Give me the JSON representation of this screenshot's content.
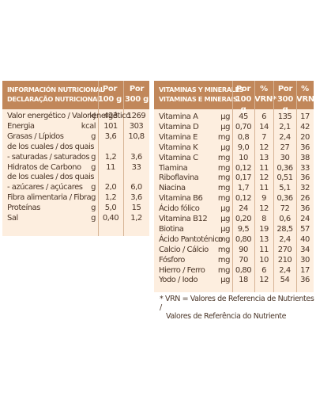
{
  "nutrition": {
    "header": {
      "title1": "INFORMACIÓN NUTRICIONAL",
      "title2": "DECLARAÇÃO NUTRICIONAL",
      "col1_l1": "Por",
      "col1_l2": "100 g",
      "col2_l1": "Por",
      "col2_l2": "300 g"
    },
    "rows": [
      {
        "label": "Valor energético / Valor energético",
        "unit": "kJ",
        "v100": "423",
        "v300": "1269"
      },
      {
        "label": "Energia",
        "unit": "kcal",
        "v100": "101",
        "v300": "303"
      },
      {
        "label": "Grasas / Lípidos",
        "unit": "g",
        "v100": "3,6",
        "v300": "10,8"
      },
      {
        "label": "de los cuales / dos quais",
        "unit": "",
        "v100": "",
        "v300": ""
      },
      {
        "label": "- saturadas / saturados",
        "unit": "g",
        "v100": "1,2",
        "v300": "3,6"
      },
      {
        "label": "Hidratos de Carbono",
        "unit": "g",
        "v100": "11",
        "v300": "33"
      },
      {
        "label": "de los cuales / dos quais",
        "unit": "",
        "v100": "",
        "v300": ""
      },
      {
        "label": "- azúcares / açúcares",
        "unit": "g",
        "v100": "2,0",
        "v300": "6,0"
      },
      {
        "label": "Fibra alimentaria / Fibra",
        "unit": "g",
        "v100": "1,2",
        "v300": "3,6"
      },
      {
        "label": "Proteínas",
        "unit": "g",
        "v100": "5,0",
        "v300": "15"
      },
      {
        "label": "Sal",
        "unit": "g",
        "v100": "0,40",
        "v300": "1,2"
      }
    ]
  },
  "vitamins": {
    "header": {
      "title1": "VITAMINAS Y MINERALES",
      "title2": "VITAMINAS E MINERAIS",
      "col1_l1": "Por",
      "col1_l2": "100 g",
      "col2_l1": "%",
      "col2_l2": "VRN*",
      "col3_l1": "Por",
      "col3_l2": "300 g",
      "col4_l1": "%",
      "col4_l2": "VRN"
    },
    "rows": [
      {
        "label": "Vitamina A",
        "unit": "µg",
        "v100": "45",
        "p100": "6",
        "v300": "135",
        "p300": "17"
      },
      {
        "label": "Vitamina D",
        "unit": "µg",
        "v100": "0,70",
        "p100": "14",
        "v300": "2,1",
        "p300": "42"
      },
      {
        "label": "Vitamina E",
        "unit": "mg",
        "v100": "0,8",
        "p100": "7",
        "v300": "2,4",
        "p300": "20"
      },
      {
        "label": "Vitamina K",
        "unit": "µg",
        "v100": "9,0",
        "p100": "12",
        "v300": "27",
        "p300": "36"
      },
      {
        "label": "Vitamina C",
        "unit": "mg",
        "v100": "10",
        "p100": "13",
        "v300": "30",
        "p300": "38"
      },
      {
        "label": "Tiamina",
        "unit": "mg",
        "v100": "0,12",
        "p100": "11",
        "v300": "0,36",
        "p300": "33"
      },
      {
        "label": "Riboflavina",
        "unit": "mg",
        "v100": "0,17",
        "p100": "12",
        "v300": "0,51",
        "p300": "36"
      },
      {
        "label": "Niacina",
        "unit": "mg",
        "v100": "1,7",
        "p100": "11",
        "v300": "5,1",
        "p300": "32"
      },
      {
        "label": "Vitamina B6",
        "unit": "mg",
        "v100": "0,12",
        "p100": "9",
        "v300": "0,36",
        "p300": "26"
      },
      {
        "label": "Ácido fólico",
        "unit": "µg",
        "v100": "24",
        "p100": "12",
        "v300": "72",
        "p300": "36"
      },
      {
        "label": "Vitamina B12",
        "unit": "µg",
        "v100": "0,20",
        "p100": "8",
        "v300": "0,6",
        "p300": "24"
      },
      {
        "label": "Biotina",
        "unit": "µg",
        "v100": "9,5",
        "p100": "19",
        "v300": "28,5",
        "p300": "57"
      },
      {
        "label": "Ácido Pantoténico",
        "unit": "mg",
        "v100": "0,80",
        "p100": "13",
        "v300": "2,4",
        "p300": "40"
      },
      {
        "label": "Calcio / Cálcio",
        "unit": "mg",
        "v100": "90",
        "p100": "11",
        "v300": "270",
        "p300": "34"
      },
      {
        "label": "Fósforo",
        "unit": "mg",
        "v100": "70",
        "p100": "10",
        "v300": "210",
        "p300": "30"
      },
      {
        "label": "Hierro / Ferro",
        "unit": "mg",
        "v100": "0,80",
        "p100": "6",
        "v300": "2,4",
        "p300": "17"
      },
      {
        "label": "Yodo / Iodo",
        "unit": "µg",
        "v100": "18",
        "p100": "12",
        "v300": "54",
        "p300": "36"
      }
    ]
  },
  "footnote": {
    "line1": "* VRN = Valores de Referencia de Nutrientes /",
    "line2": "Valores de Referência do Nutriente"
  }
}
